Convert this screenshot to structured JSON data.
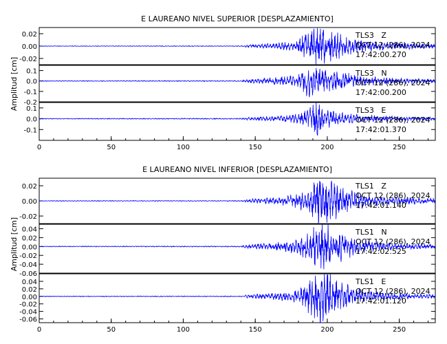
{
  "chart_data": [
    {
      "type": "line",
      "title": "E LAUREANO NIVEL SUPERIOR [DESPLAZAMIENTO]",
      "ylabel": "Amplitud [cm]",
      "xlim": [
        0,
        275
      ],
      "xticks": [
        0,
        50,
        100,
        150,
        200,
        250
      ],
      "line_color": "#0000ff",
      "panels": [
        {
          "channel": "TLS3   Z",
          "date": "OCT 12 (286), 2024",
          "time": "17:42:00.270",
          "ylim": [
            -0.03,
            0.03
          ],
          "yticks": [
            "0.02",
            "0.00",
            "-0.02"
          ],
          "envelope": [
            [
              0,
              0.0004
            ],
            [
              140,
              0.0005
            ],
            [
              145,
              0.002
            ],
            [
              165,
              0.004
            ],
            [
              178,
              0.006
            ],
            [
              185,
              0.02
            ],
            [
              192,
              0.03
            ],
            [
              200,
              0.022
            ],
            [
              210,
              0.015
            ],
            [
              225,
              0.008
            ],
            [
              240,
              0.005
            ],
            [
              275,
              0.003
            ]
          ]
        },
        {
          "channel": "TLS3   N",
          "date": "OCT 12 (286), 2024",
          "time": "17:42:00.200",
          "ylim": [
            -0.2,
            0.15
          ],
          "yticks": [
            "0.1",
            "0.0",
            "-0.1",
            "-0.2"
          ],
          "envelope": [
            [
              0,
              0.003
            ],
            [
              140,
              0.004
            ],
            [
              145,
              0.015
            ],
            [
              165,
              0.03
            ],
            [
              180,
              0.05
            ],
            [
              186,
              0.12
            ],
            [
              190,
              0.16
            ],
            [
              197,
              0.1
            ],
            [
              210,
              0.07
            ],
            [
              225,
              0.04
            ],
            [
              245,
              0.025
            ],
            [
              275,
              0.015
            ]
          ]
        },
        {
          "channel": "TLS3   E",
          "date": "OCT 12 (286), 2024",
          "time": "17:42:01.370",
          "ylim": [
            -0.2,
            0.15
          ],
          "yticks": [
            "0.1",
            "0.0",
            "-0.1"
          ],
          "envelope": [
            [
              0,
              0.003
            ],
            [
              140,
              0.004
            ],
            [
              145,
              0.012
            ],
            [
              165,
              0.02
            ],
            [
              180,
              0.04
            ],
            [
              187,
              0.1
            ],
            [
              192,
              0.15
            ],
            [
              198,
              0.08
            ],
            [
              210,
              0.045
            ],
            [
              225,
              0.03
            ],
            [
              245,
              0.02
            ],
            [
              275,
              0.012
            ]
          ]
        }
      ]
    },
    {
      "type": "line",
      "title": "E LAUREANO NIVEL INFERIOR [DESPLAZAMIENTO]",
      "ylabel": "Amplitud [cm]",
      "xlim": [
        0,
        275
      ],
      "xticks": [
        0,
        50,
        100,
        150,
        200,
        250
      ],
      "line_color": "#0000ff",
      "panels": [
        {
          "channel": "TLS1   Z",
          "date": "OCT 12 (286), 2024",
          "time": "17:42:01.140",
          "ylim": [
            -0.03,
            0.03
          ],
          "yticks": [
            "0.02",
            "0.00",
            "-0.02"
          ],
          "envelope": [
            [
              0,
              0.0004
            ],
            [
              140,
              0.0005
            ],
            [
              145,
              0.002
            ],
            [
              165,
              0.004
            ],
            [
              180,
              0.008
            ],
            [
              188,
              0.015
            ],
            [
              195,
              0.028
            ],
            [
              205,
              0.02
            ],
            [
              215,
              0.012
            ],
            [
              230,
              0.006
            ],
            [
              250,
              0.004
            ],
            [
              275,
              0.003
            ]
          ]
        },
        {
          "channel": "TLS1   N",
          "date": "OCT 12 (286), 2024",
          "time": "17:42:02.525",
          "ylim": [
            -0.06,
            0.05
          ],
          "yticks": [
            "0.04",
            "0.02",
            "0.00",
            "-0.02",
            "-0.04",
            "-0.06"
          ],
          "envelope": [
            [
              0,
              0.0008
            ],
            [
              140,
              0.001
            ],
            [
              145,
              0.004
            ],
            [
              165,
              0.008
            ],
            [
              180,
              0.015
            ],
            [
              188,
              0.03
            ],
            [
              195,
              0.045
            ],
            [
              205,
              0.035
            ],
            [
              215,
              0.02
            ],
            [
              230,
              0.01
            ],
            [
              250,
              0.006
            ],
            [
              275,
              0.004
            ]
          ]
        },
        {
          "channel": "TLS1   E",
          "date": "OCT 12 (286), 2024",
          "time": "17:42:01.120",
          "ylim": [
            -0.07,
            0.06
          ],
          "yticks": [
            "0.04",
            "0.02",
            "0.00",
            "-0.02",
            "-0.04",
            "-0.06"
          ],
          "envelope": [
            [
              0,
              0.0008
            ],
            [
              140,
              0.001
            ],
            [
              145,
              0.004
            ],
            [
              165,
              0.008
            ],
            [
              180,
              0.015
            ],
            [
              188,
              0.04
            ],
            [
              195,
              0.06
            ],
            [
              205,
              0.045
            ],
            [
              215,
              0.025
            ],
            [
              230,
              0.012
            ],
            [
              250,
              0.007
            ],
            [
              275,
              0.004
            ]
          ]
        }
      ]
    }
  ]
}
